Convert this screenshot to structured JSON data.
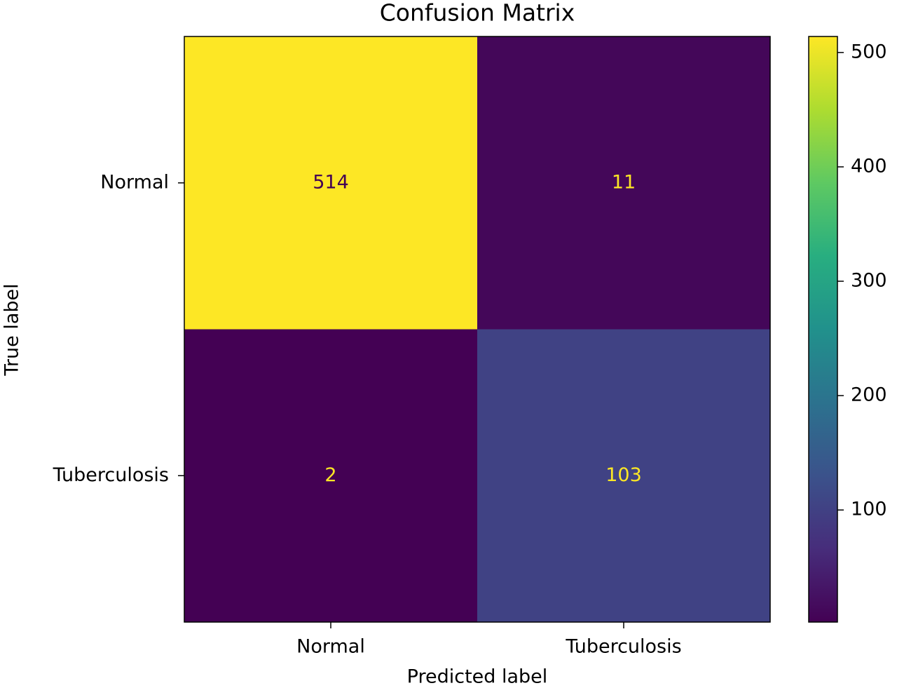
{
  "chart_data": {
    "type": "heatmap",
    "title": "Confusion Matrix",
    "xlabel": "Predicted label",
    "ylabel": "True label",
    "x_categories": [
      "Normal",
      "Tuberculosis"
    ],
    "y_categories": [
      "Normal",
      "Tuberculosis"
    ],
    "values": [
      [
        514,
        11
      ],
      [
        2,
        103
      ]
    ],
    "colormap": "viridis",
    "clim": [
      2,
      514
    ],
    "cticks": [
      100,
      200,
      300,
      400,
      500
    ]
  }
}
